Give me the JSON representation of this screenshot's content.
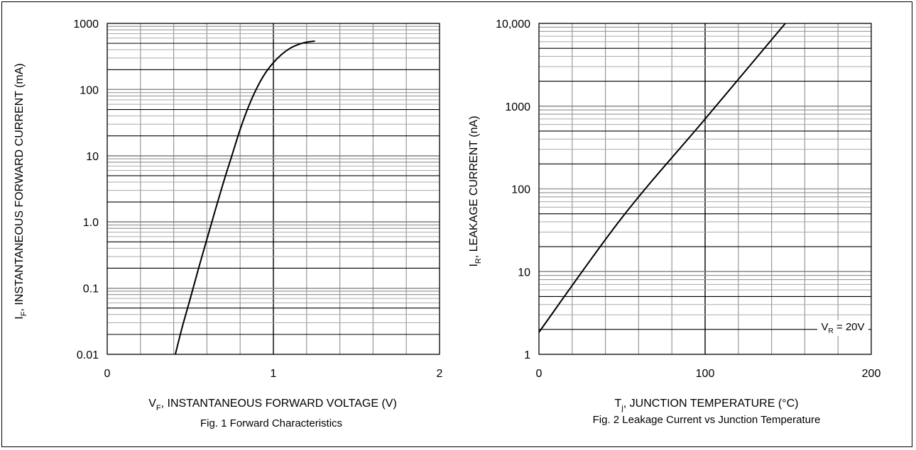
{
  "chart_data": [
    {
      "type": "line",
      "title": "Fig. 1  Forward Characteristics",
      "xlabel": {
        "main": "V",
        "sub": "F",
        "rest": ", INSTANTANEOUS FORWARD VOLTAGE (V)"
      },
      "ylabel": {
        "main": "I",
        "sub": "F",
        "rest": ", INSTANTANEOUS FORWARD CURRENT (mA)"
      },
      "xlim": [
        0,
        2
      ],
      "ylim": [
        0.01,
        1000
      ],
      "yscale": "log",
      "grid": true,
      "x_ticks": [
        {
          "v": 0,
          "label": "0"
        },
        {
          "v": 1,
          "label": "1"
        },
        {
          "v": 2,
          "label": "2"
        }
      ],
      "y_ticks": [
        {
          "v": 0.01,
          "label": "0.01"
        },
        {
          "v": 0.1,
          "label": "0.1"
        },
        {
          "v": 1,
          "label": "1.0"
        },
        {
          "v": 10,
          "label": "10"
        },
        {
          "v": 100,
          "label": "100"
        },
        {
          "v": 1000,
          "label": "1000"
        }
      ],
      "series": [
        {
          "x": [
            0.41,
            0.45,
            0.5,
            0.55,
            0.6,
            0.65,
            0.7,
            0.75,
            0.8,
            0.85,
            0.9,
            0.95,
            1.0,
            1.05,
            1.1,
            1.15,
            1.2,
            1.25
          ],
          "y": [
            0.01,
            0.025,
            0.07,
            0.2,
            0.55,
            1.5,
            4,
            10,
            25,
            55,
            105,
            175,
            255,
            340,
            420,
            480,
            520,
            540
          ]
        }
      ]
    },
    {
      "type": "line",
      "title": "Fig. 2  Leakage Current vs Junction Temperature",
      "xlabel": {
        "main": "T",
        "sub": "j",
        "rest": ", JUNCTION TEMPERATURE (°C)"
      },
      "ylabel": {
        "main": "I",
        "sub": "R",
        "rest": ", LEAKAGE CURRENT (nA)"
      },
      "xlim": [
        0,
        200
      ],
      "ylim": [
        1,
        10000
      ],
      "yscale": "log",
      "grid": true,
      "x_ticks": [
        {
          "v": 0,
          "label": "0"
        },
        {
          "v": 100,
          "label": "100"
        },
        {
          "v": 200,
          "label": "200"
        }
      ],
      "y_ticks": [
        {
          "v": 1,
          "label": "1"
        },
        {
          "v": 10,
          "label": "10"
        },
        {
          "v": 100,
          "label": "100"
        },
        {
          "v": 1000,
          "label": "1000"
        },
        {
          "v": 10000,
          "label": "10,000"
        }
      ],
      "annotation": {
        "main": "V",
        "sub": "R",
        "rest": " = 20V"
      },
      "series": [
        {
          "x": [
            0,
            50,
            100,
            150
          ],
          "y": [
            1.85,
            45,
            700,
            11000
          ]
        }
      ]
    }
  ]
}
